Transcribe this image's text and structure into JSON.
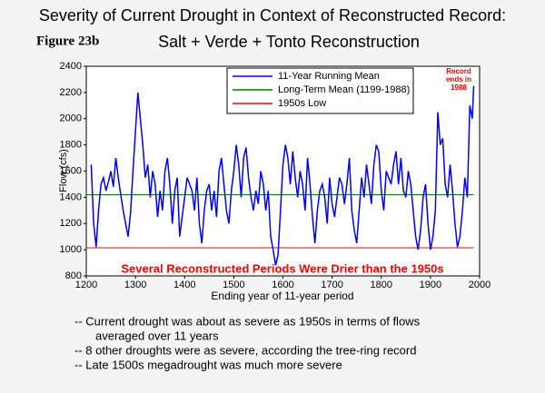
{
  "chart_data": {
    "type": "line",
    "title": "Severity of Current Drought in Context of Reconstructed Record:",
    "subtitle": "Salt + Verde + Tonto Reconstruction",
    "figure_label": "Figure 23b",
    "xlabel": "Ending year of 11-year period",
    "ylabel": "Flow (cfs)",
    "xlim": [
      1200,
      2000
    ],
    "xticks": [
      1200,
      1300,
      1400,
      1500,
      1600,
      1700,
      1800,
      1900,
      2000
    ],
    "ylim": [
      800,
      2400
    ],
    "yticks": [
      800,
      1000,
      1200,
      1400,
      1600,
      1800,
      2000,
      2200,
      2400
    ],
    "grid": false,
    "legend": "top",
    "annotation": [
      "Record",
      "ends in",
      "1988"
    ],
    "banner": "Several Reconstructed Periods Were Drier than the 1950s",
    "notes": [
      [
        "--  Current drought was about as severe as 1950s in terms of flows",
        "averaged over 11 years"
      ],
      [
        "--  8 other droughts were as severe, according the tree-ring record"
      ],
      [
        "--  Late 1500s megadrought was much more severe"
      ]
    ],
    "series": [
      {
        "name": "11-Year Running Mean",
        "color": "#0000ff",
        "x": [
          1210,
          1215,
          1220,
          1225,
          1230,
          1235,
          1240,
          1245,
          1250,
          1255,
          1260,
          1265,
          1270,
          1275,
          1280,
          1285,
          1290,
          1295,
          1300,
          1305,
          1310,
          1315,
          1320,
          1325,
          1330,
          1335,
          1340,
          1345,
          1350,
          1355,
          1360,
          1365,
          1370,
          1375,
          1380,
          1385,
          1390,
          1395,
          1400,
          1405,
          1410,
          1415,
          1420,
          1425,
          1430,
          1435,
          1440,
          1445,
          1450,
          1455,
          1460,
          1465,
          1470,
          1475,
          1480,
          1485,
          1490,
          1495,
          1500,
          1505,
          1510,
          1515,
          1520,
          1525,
          1530,
          1535,
          1540,
          1545,
          1550,
          1555,
          1560,
          1565,
          1570,
          1575,
          1580,
          1585,
          1590,
          1595,
          1600,
          1605,
          1610,
          1615,
          1620,
          1625,
          1630,
          1635,
          1640,
          1645,
          1650,
          1655,
          1660,
          1665,
          1670,
          1675,
          1680,
          1685,
          1690,
          1695,
          1700,
          1705,
          1710,
          1715,
          1720,
          1725,
          1730,
          1735,
          1740,
          1745,
          1750,
          1755,
          1760,
          1765,
          1770,
          1775,
          1780,
          1785,
          1790,
          1795,
          1800,
          1805,
          1810,
          1815,
          1820,
          1825,
          1830,
          1835,
          1840,
          1845,
          1850,
          1855,
          1860,
          1865,
          1870,
          1875,
          1880,
          1885,
          1890,
          1895,
          1900,
          1905,
          1910,
          1915,
          1920,
          1925,
          1930,
          1935,
          1940,
          1945,
          1950,
          1955,
          1960,
          1965,
          1970,
          1975,
          1980,
          1985,
          1988
        ],
        "values": [
          1650,
          1200,
          1020,
          1300,
          1500,
          1550,
          1450,
          1520,
          1600,
          1480,
          1700,
          1550,
          1420,
          1300,
          1200,
          1100,
          1280,
          1600,
          1900,
          2200,
          2000,
          1800,
          1550,
          1650,
          1400,
          1600,
          1500,
          1250,
          1450,
          1300,
          1600,
          1700,
          1500,
          1200,
          1450,
          1550,
          1100,
          1250,
          1400,
          1550,
          1500,
          1450,
          1300,
          1550,
          1200,
          1050,
          1300,
          1450,
          1500,
          1300,
          1450,
          1250,
          1600,
          1700,
          1500,
          1300,
          1200,
          1450,
          1600,
          1800,
          1650,
          1400,
          1700,
          1780,
          1550,
          1400,
          1300,
          1450,
          1350,
          1600,
          1500,
          1300,
          1450,
          1100,
          1000,
          880,
          960,
          1300,
          1650,
          1800,
          1700,
          1500,
          1750,
          1550,
          1400,
          1600,
          1500,
          1300,
          1700,
          1500,
          1250,
          1050,
          1300,
          1450,
          1500,
          1400,
          1200,
          1550,
          1350,
          1250,
          1400,
          1550,
          1500,
          1350,
          1500,
          1700,
          1300,
          1150,
          1050,
          1300,
          1550,
          1400,
          1650,
          1500,
          1350,
          1650,
          1800,
          1750,
          1450,
          1300,
          1600,
          1550,
          1500,
          1650,
          1750,
          1500,
          1700,
          1450,
          1400,
          1600,
          1500,
          1300,
          1100,
          1000,
          1150,
          1400,
          1500,
          1200,
          1000,
          1100,
          1300,
          2050,
          1800,
          1850,
          1500,
          1400,
          1650,
          1450,
          1200,
          1020,
          1100,
          1300,
          1550,
          1400,
          2100,
          2000,
          2250
        ]
      },
      {
        "name": "Long-Term Mean (1199-1988)",
        "color": "#008000",
        "x": [
          1200,
          1988
        ],
        "values": [
          1420,
          1420
        ]
      },
      {
        "name": "1950s Low",
        "color": "#ff0000",
        "x": [
          1200,
          1988
        ],
        "values": [
          1015,
          1015
        ]
      }
    ]
  }
}
